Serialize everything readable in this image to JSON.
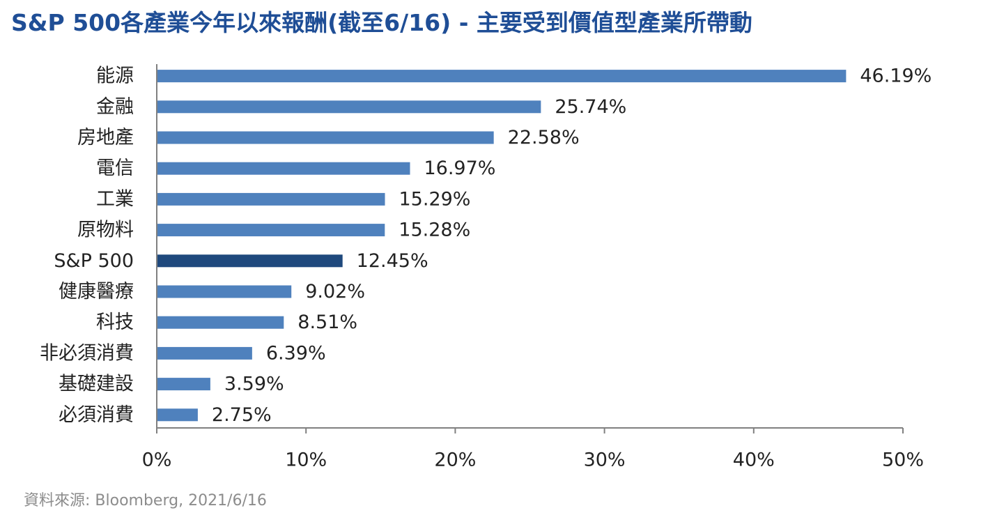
{
  "title": "S&P 500各產業今年以來報酬(截至6/16) - 主要受到價值型產業所帶動",
  "source": "資料來源: Bloomberg, 2021/6/16",
  "colors": {
    "bar": "#4f81bd",
    "highlight": "#1f497d",
    "title": "#1f4e96",
    "axis": "#808080",
    "text": "#222222"
  },
  "chart_data": {
    "type": "bar",
    "orientation": "horizontal",
    "title": "S&P 500各產業今年以來報酬(截至6/16) - 主要受到價值型產業所帶動",
    "categories": [
      "能源",
      "金融",
      "房地產",
      "電信",
      "工業",
      "原物料",
      "S&P 500",
      "健康醫療",
      "科技",
      "非必須消費",
      "基礎建設",
      "必須消費"
    ],
    "values": [
      46.19,
      25.74,
      22.58,
      16.97,
      15.29,
      15.28,
      12.45,
      9.02,
      8.51,
      6.39,
      3.59,
      2.75
    ],
    "data_labels": [
      "46.19%",
      "25.74%",
      "22.58%",
      "16.97%",
      "15.29%",
      "15.28%",
      "12.45%",
      "9.02%",
      "8.51%",
      "6.39%",
      "3.59%",
      "2.75%"
    ],
    "highlight_category": "S&P 500",
    "xlim": [
      0,
      50
    ],
    "xticks": [
      0,
      10,
      20,
      30,
      40,
      50
    ],
    "xtick_labels": [
      "0%",
      "10%",
      "20%",
      "30%",
      "40%",
      "50%"
    ],
    "xlabel": "",
    "ylabel": "",
    "grid": false,
    "legend": "none"
  }
}
